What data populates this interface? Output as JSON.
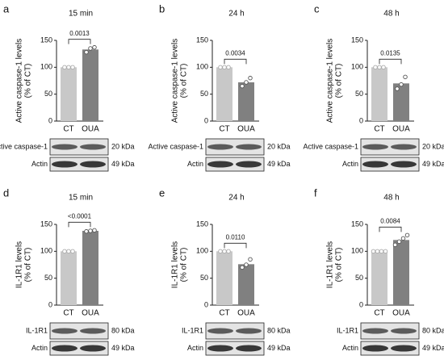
{
  "chart_data": [
    {
      "type": "bar",
      "panel": "a",
      "title": "15 min",
      "ylabel": [
        "Active caspase-1 levels",
        "(% of CT)"
      ],
      "categories": [
        "CT",
        "OUA"
      ],
      "values": [
        100,
        133
      ],
      "colors": [
        "#c8c8c8",
        "#808080"
      ],
      "points": [
        [
          100,
          100,
          100
        ],
        [
          128,
          135,
          137
        ]
      ],
      "annotation": "0.0013",
      "ylim": [
        0,
        150
      ],
      "yticks": [
        0,
        50,
        100,
        150
      ],
      "blots": [
        {
          "label": "Active caspase-1",
          "size": "20 kDa"
        },
        {
          "label": "Actin",
          "size": "49 kDa"
        }
      ]
    },
    {
      "type": "bar",
      "panel": "b",
      "title": "24 h",
      "ylabel": [
        "Active caspase-1 levels",
        "(% of CT)"
      ],
      "categories": [
        "CT",
        "OUA"
      ],
      "values": [
        100,
        72
      ],
      "colors": [
        "#c8c8c8",
        "#808080"
      ],
      "points": [
        [
          100,
          100,
          100
        ],
        [
          65,
          72,
          80
        ]
      ],
      "annotation": "0.0034",
      "ylim": [
        0,
        150
      ],
      "yticks": [
        0,
        50,
        100,
        150
      ],
      "blots": [
        {
          "label": "Active caspase-1",
          "size": "20 kDa"
        },
        {
          "label": "Actin",
          "size": "49 kDa"
        }
      ]
    },
    {
      "type": "bar",
      "panel": "c",
      "title": "48 h",
      "ylabel": [
        "Active caspase-1 levels",
        "(% of CT)"
      ],
      "categories": [
        "CT",
        "OUA"
      ],
      "values": [
        100,
        70
      ],
      "colors": [
        "#c8c8c8",
        "#808080"
      ],
      "points": [
        [
          100,
          100,
          100
        ],
        [
          60,
          68,
          82
        ]
      ],
      "annotation": "0.0135",
      "ylim": [
        0,
        150
      ],
      "yticks": [
        0,
        50,
        100,
        150
      ],
      "blots": [
        {
          "label": "Active caspase-1",
          "size": "20 kDa"
        },
        {
          "label": "Actin",
          "size": "49 kDa"
        }
      ]
    },
    {
      "type": "bar",
      "panel": "d",
      "title": "15 min",
      "ylabel": [
        "IL-1R1 levels",
        "(% of CT)"
      ],
      "categories": [
        "CT",
        "OUA"
      ],
      "values": [
        100,
        138
      ],
      "colors": [
        "#c8c8c8",
        "#808080"
      ],
      "points": [
        [
          100,
          100,
          100
        ],
        [
          137,
          138,
          139
        ]
      ],
      "annotation": "<0.0001",
      "ylim": [
        0,
        150
      ],
      "yticks": [
        0,
        50,
        100,
        150
      ],
      "blots": [
        {
          "label": "IL-1R1",
          "size": "80 kDa"
        },
        {
          "label": "Actin",
          "size": "49 kDa"
        }
      ]
    },
    {
      "type": "bar",
      "panel": "e",
      "title": "24 h",
      "ylabel": [
        "IL-1R1 levels",
        "(% of CT)"
      ],
      "categories": [
        "CT",
        "OUA"
      ],
      "values": [
        100,
        76
      ],
      "colors": [
        "#c8c8c8",
        "#808080"
      ],
      "points": [
        [
          100,
          100,
          100
        ],
        [
          70,
          75,
          85
        ]
      ],
      "annotation": "0.0110",
      "ylim": [
        0,
        150
      ],
      "yticks": [
        0,
        50,
        100,
        150
      ],
      "blots": [
        {
          "label": "IL-1R1",
          "size": "80 kDa"
        },
        {
          "label": "Actin",
          "size": "49 kDa"
        }
      ]
    },
    {
      "type": "bar",
      "panel": "f",
      "title": "48 h",
      "ylabel": [
        "IL-1R1 levels",
        "(% of CT)"
      ],
      "categories": [
        "CT",
        "OUA"
      ],
      "values": [
        100,
        121
      ],
      "colors": [
        "#c8c8c8",
        "#808080"
      ],
      "points": [
        [
          100,
          100,
          100,
          100
        ],
        [
          112,
          118,
          124,
          130
        ]
      ],
      "annotation": "0.0084",
      "ylim": [
        0,
        150
      ],
      "yticks": [
        0,
        50,
        100,
        150
      ],
      "blots": [
        {
          "label": "IL-1R1",
          "size": "80 kDa"
        },
        {
          "label": "Actin",
          "size": "49 kDa"
        }
      ]
    }
  ]
}
